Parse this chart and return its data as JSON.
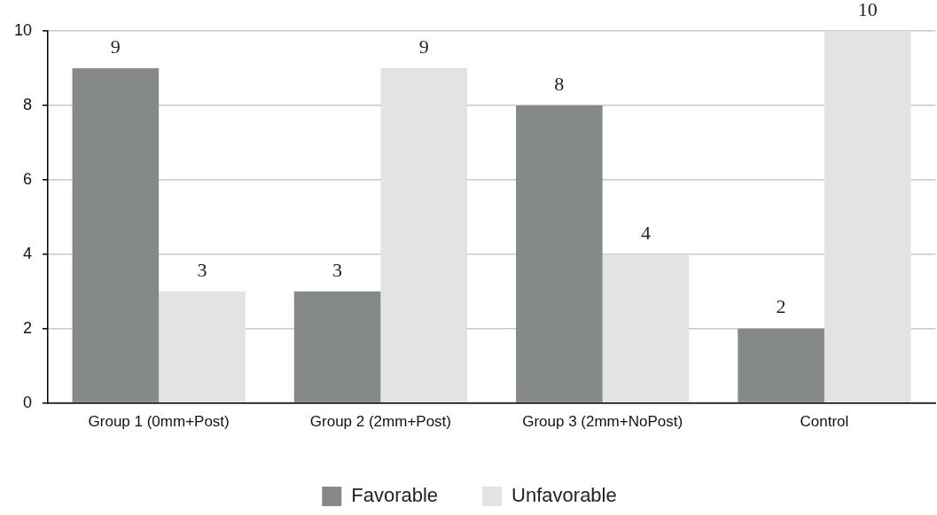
{
  "chart_data": {
    "type": "bar",
    "categories": [
      "Group 1 (0mm+Post)",
      "Group 2 (2mm+Post)",
      "Group 3 (2mm+NoPost)",
      "Control"
    ],
    "series": [
      {
        "name": "Favorable",
        "color": "#868989",
        "values": [
          9,
          3,
          8,
          2
        ]
      },
      {
        "name": "Unfavorable",
        "color": "#e3e3e3",
        "values": [
          3,
          9,
          4,
          10
        ]
      }
    ],
    "ylim": [
      0,
      10
    ],
    "yticks": [
      0,
      2,
      4,
      6,
      8,
      10
    ],
    "grid": "y",
    "legend": "bottom",
    "data_labels": true
  }
}
